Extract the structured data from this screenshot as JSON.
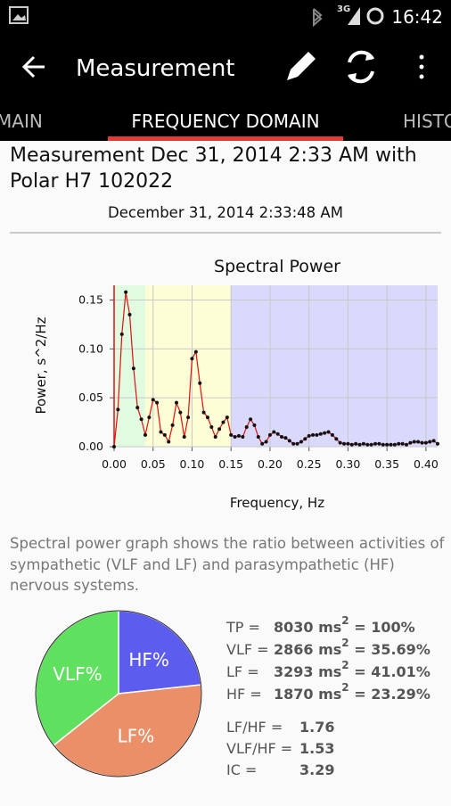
{
  "status_bar": {
    "network": "3G",
    "time": "16:42"
  },
  "app_bar": {
    "title": "Measurement"
  },
  "tabs": [
    "MAIN",
    "FREQUENCY DOMAIN",
    "HISTO"
  ],
  "heading": "Measurement Dec 31, 2014 2:33 AM with Polar H7 102022",
  "subheading": "December 31, 2014 2:33:48 AM",
  "chart_data": [
    {
      "type": "line",
      "title": "Spectral Power",
      "x_label": "Frequency, Hz",
      "y_label": "Power, s^2/Hz",
      "xlim": [
        0,
        0.415
      ],
      "ylim": [
        0,
        0.165
      ],
      "xticks": [
        {
          "value": 0,
          "label": "0.00"
        },
        {
          "value": 0.05,
          "label": "0.05"
        },
        {
          "value": 0.1,
          "label": "0.10"
        },
        {
          "value": 0.15,
          "label": "0.15"
        },
        {
          "value": 0.2,
          "label": "0.20"
        },
        {
          "value": 0.25,
          "label": "0.25"
        },
        {
          "value": 0.3,
          "label": "0.30"
        },
        {
          "value": 0.35,
          "label": "0.35"
        },
        {
          "value": 0.4,
          "label": "0.40"
        }
      ],
      "yticks": [
        {
          "value": 0,
          "label": "0.00"
        },
        {
          "value": 0.05,
          "label": "0.05"
        },
        {
          "value": 0.1,
          "label": "0.10"
        },
        {
          "value": 0.15,
          "label": "0.15"
        }
      ],
      "grid": true,
      "bands": [
        {
          "from": 0,
          "to": 0.04,
          "color": "#e0fbe0"
        },
        {
          "from": 0.04,
          "to": 0.15,
          "color": "#fdfdd6"
        },
        {
          "from": 0.15,
          "to": 0.415,
          "color": "#d9d9fb"
        }
      ],
      "x": [
        0,
        0.005,
        0.01,
        0.015,
        0.02,
        0.025,
        0.03,
        0.035,
        0.04,
        0.045,
        0.05,
        0.055,
        0.06,
        0.065,
        0.07,
        0.075,
        0.08,
        0.085,
        0.09,
        0.095,
        0.1,
        0.105,
        0.11,
        0.115,
        0.12,
        0.125,
        0.13,
        0.135,
        0.14,
        0.145,
        0.15,
        0.155,
        0.16,
        0.165,
        0.17,
        0.175,
        0.18,
        0.185,
        0.19,
        0.195,
        0.2,
        0.205,
        0.21,
        0.215,
        0.22,
        0.225,
        0.23,
        0.235,
        0.24,
        0.245,
        0.25,
        0.255,
        0.26,
        0.265,
        0.27,
        0.275,
        0.28,
        0.285,
        0.29,
        0.295,
        0.3,
        0.305,
        0.31,
        0.315,
        0.32,
        0.325,
        0.33,
        0.335,
        0.34,
        0.345,
        0.35,
        0.355,
        0.36,
        0.365,
        0.37,
        0.375,
        0.38,
        0.385,
        0.39,
        0.395,
        0.4,
        0.405,
        0.41,
        0.415
      ],
      "series": [
        {
          "color": "#dd1111",
          "values": [
            0,
            0.038,
            0.115,
            0.158,
            0.135,
            0.08,
            0.04,
            0.028,
            0.012,
            0.03,
            0.048,
            0.045,
            0.015,
            0.012,
            0.005,
            0.022,
            0.045,
            0.035,
            0.01,
            0.03,
            0.09,
            0.097,
            0.065,
            0.035,
            0.03,
            0.02,
            0.01,
            0.018,
            0.025,
            0.03,
            0.012,
            0.01,
            0.011,
            0.01,
            0.02,
            0.028,
            0.022,
            0.01,
            0.003,
            0.005,
            0.012,
            0.015,
            0.013,
            0.01,
            0.009,
            0.006,
            0.003,
            0.003,
            0.005,
            0.008,
            0.011,
            0.012,
            0.012,
            0.013,
            0.014,
            0.015,
            0.012,
            0.008,
            0.004,
            0.003,
            0.003,
            0.002,
            0.003,
            0.002,
            0.003,
            0.002,
            0.002,
            0.003,
            0.003,
            0.002,
            0.002,
            0.002,
            0.002,
            0.003,
            0.003,
            0.002,
            0.004,
            0.005,
            0.005,
            0.004,
            0.004,
            0.005,
            0.006,
            0.003
          ]
        }
      ]
    },
    {
      "type": "pie",
      "categories": [
        "HF%",
        "LF%",
        "VLF%"
      ],
      "values": [
        23.29,
        41.01,
        35.69
      ],
      "colors": [
        "#5c5cee",
        "#ea8f68",
        "#5fe05f"
      ]
    }
  ],
  "description": "Spectral power graph shows the ratio between activities of sympathetic (VLF and LF) and parasympathetic (HF) nervous systems.",
  "stats": [
    {
      "label": "TP =",
      "value": "8030 ms",
      "sup": "2",
      "tail": " = 100%"
    },
    {
      "label": "VLF =",
      "value": "2866 ms",
      "sup": "2",
      "tail": " = 35.69%"
    },
    {
      "label": "LF =",
      "value": "3293 ms",
      "sup": "2",
      "tail": " = 41.01%"
    },
    {
      "label": "HF =",
      "value": "1870 ms",
      "sup": "2",
      "tail": " = 23.29%"
    }
  ],
  "ratios": [
    {
      "label": "LF/HF =",
      "value": "1.76"
    },
    {
      "label": "VLF/HF =",
      "value": "1.53"
    },
    {
      "label": "IC =",
      "value": "3.29"
    }
  ]
}
